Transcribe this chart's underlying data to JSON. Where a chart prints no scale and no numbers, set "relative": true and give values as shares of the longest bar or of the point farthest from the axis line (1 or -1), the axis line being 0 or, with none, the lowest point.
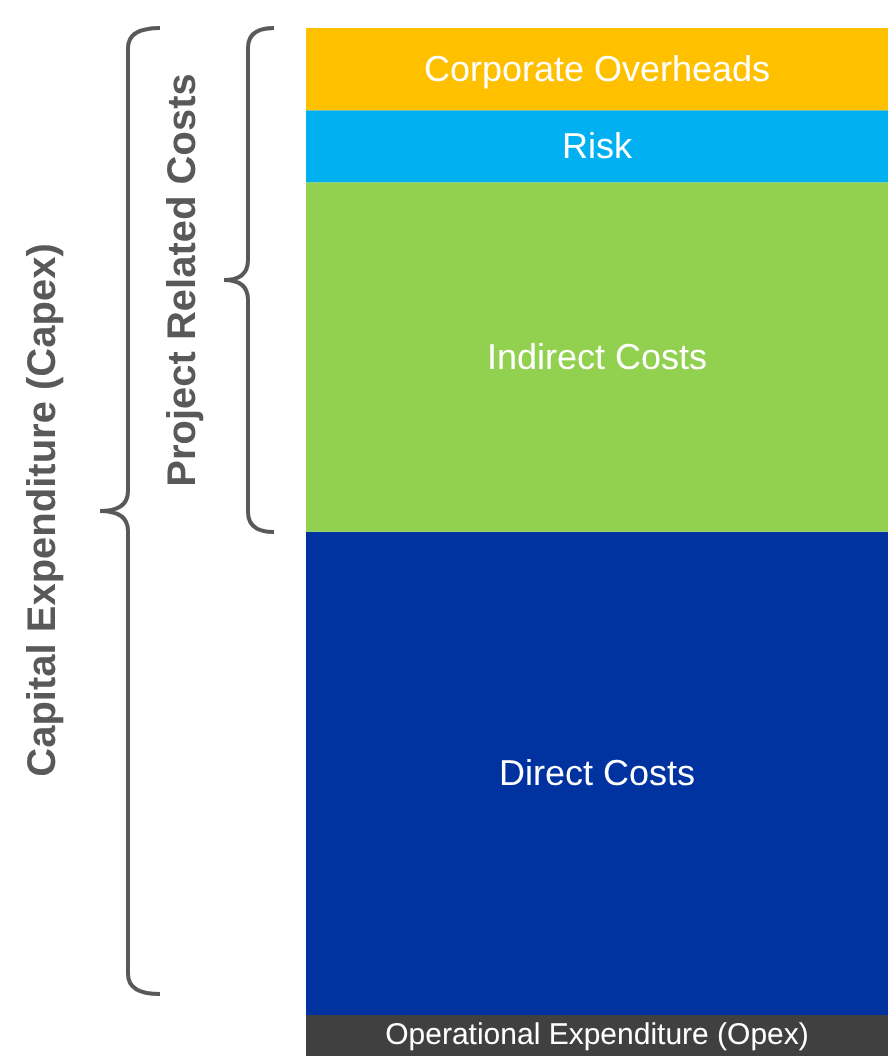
{
  "chart_data": {
    "type": "bar",
    "stacked": true,
    "relative": true,
    "categories": [
      null
    ],
    "series": [
      {
        "name": "Operational Expenditure (Opex)",
        "color": "#404040",
        "values": [
          0.04
        ]
      },
      {
        "name": "Direct Costs",
        "color": "#0033a0",
        "values": [
          0.47
        ]
      },
      {
        "name": "Indirect Costs",
        "color": "#92d050",
        "values": [
          0.34
        ]
      },
      {
        "name": "Risk",
        "color": "#00b0f0",
        "values": [
          0.07
        ]
      },
      {
        "name": "Corporate Overheads",
        "color": "#ffc000",
        "values": [
          0.08
        ]
      }
    ],
    "annotations": [
      "Capital Expenditure (Capex)",
      "Project Related Costs"
    ]
  }
}
